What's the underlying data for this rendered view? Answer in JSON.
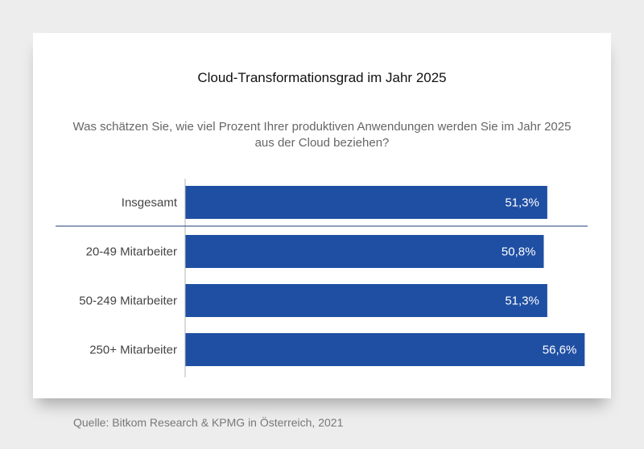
{
  "title": "Cloud-Transformationsgrad im Jahr 2025",
  "subtitle": "Was schätzen Sie, wie viel Prozent Ihrer produktiven Anwendungen werden Sie im Jahr 2025 aus der Cloud beziehen?",
  "source": "Quelle: Bitkom Research & KPMG in Österreich, 2021",
  "colors": {
    "bar": "#1f4fa3",
    "label": "#444444",
    "divider": "#1f3f7a",
    "axis": "#b5b5b5"
  },
  "chart_data": {
    "type": "bar",
    "orientation": "horizontal",
    "title": "Cloud-Transformationsgrad im Jahr 2025",
    "categories": [
      "Insgesamt",
      "20-49 Mitarbeiter",
      "50-249 Mitarbeiter",
      "250+ Mitarbeiter"
    ],
    "values": [
      51.3,
      50.8,
      51.3,
      56.6
    ],
    "value_labels": [
      "51,3%",
      "50,8%",
      "51,3%",
      "56,6%"
    ],
    "xlim": [
      0,
      65
    ],
    "unit": "%",
    "xlabel": "",
    "ylabel": "",
    "grid": false
  }
}
